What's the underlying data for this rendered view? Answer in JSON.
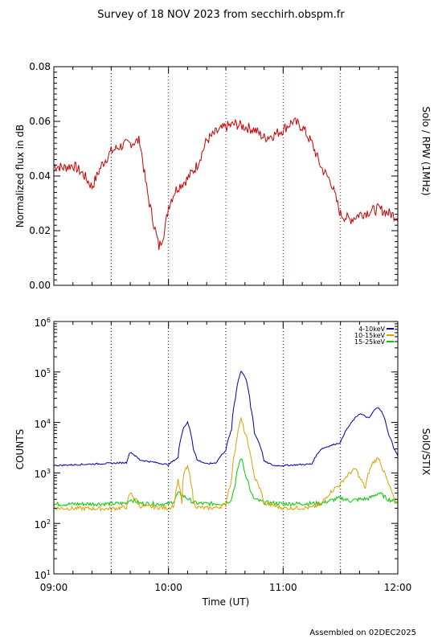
{
  "title": "Survey of 18 NOV 2023 from secchirh.obspm.fr",
  "footer": "Assembled on 02DEC2025",
  "chart_data": [
    {
      "type": "line",
      "instrument_label": "Solo / RPW (1MHz)",
      "ylabel": "Normalized flux in dB",
      "xlim": [
        "09:00",
        "12:00"
      ],
      "ylim": [
        0.0,
        0.08
      ],
      "y_ticks": [
        "0.00",
        "0.02",
        "0.04",
        "0.06",
        "0.08"
      ],
      "vertical_lines": [
        "09:30",
        "10:00",
        "10:30",
        "11:00",
        "11:30"
      ],
      "vertical_line_colors": [
        "#000000",
        "#aa0000",
        "#aa0000",
        "#aa0000",
        "#aa0000"
      ],
      "series": [
        {
          "color": "#cc0000",
          "x_minutes": [
            0,
            5,
            10,
            15,
            20,
            25,
            30,
            35,
            40,
            45,
            48,
            50,
            55,
            58,
            60,
            63,
            65,
            70,
            75,
            80,
            85,
            90,
            95,
            100,
            105,
            110,
            115,
            120,
            125,
            130,
            135,
            140,
            145,
            150,
            155,
            160,
            165,
            170,
            180
          ],
          "y": [
            0.044,
            0.043,
            0.044,
            0.041,
            0.036,
            0.044,
            0.049,
            0.051,
            0.052,
            0.053,
            0.038,
            0.03,
            0.014,
            0.02,
            0.029,
            0.034,
            0.036,
            0.039,
            0.044,
            0.053,
            0.056,
            0.058,
            0.059,
            0.058,
            0.057,
            0.054,
            0.055,
            0.057,
            0.06,
            0.058,
            0.052,
            0.043,
            0.038,
            0.026,
            0.024,
            0.026,
            0.027,
            0.028,
            0.025
          ]
        }
      ]
    },
    {
      "type": "line",
      "instrument_label": "SolO/STIX",
      "ylabel": "COUNTS",
      "xlabel": "Time (UT)",
      "x_ticks": [
        "09:00",
        "10:00",
        "11:00",
        "12:00"
      ],
      "xlim": [
        "09:00",
        "12:00"
      ],
      "y_scale": "log",
      "ylim": [
        10,
        1000000
      ],
      "y_tick_exponents": [
        "1",
        "2",
        "3",
        "4",
        "5",
        "6"
      ],
      "vertical_lines": [
        "09:30",
        "10:00",
        "10:30",
        "11:00",
        "11:30"
      ],
      "legend_position": "top-right",
      "series": [
        {
          "name": "4-10keV",
          "color": "#0000aa",
          "x_minutes": [
            0,
            20,
            38,
            40,
            45,
            60,
            65,
            68,
            70,
            73,
            75,
            80,
            85,
            90,
            93,
            95,
            98,
            100,
            103,
            105,
            110,
            115,
            120,
            135,
            140,
            150,
            155,
            160,
            165,
            168,
            170,
            172,
            175,
            178,
            180
          ],
          "y": [
            1400,
            1500,
            1600,
            2600,
            1800,
            1450,
            2000,
            8000,
            10000,
            3000,
            1800,
            1500,
            1600,
            2800,
            7000,
            30000,
            105000,
            80000,
            20000,
            6000,
            1700,
            1400,
            1400,
            1500,
            3000,
            4000,
            9000,
            15000,
            12000,
            18000,
            20000,
            15000,
            6000,
            3000,
            2200
          ]
        },
        {
          "name": "10-15keV",
          "color": "#e0a000",
          "x_minutes": [
            0,
            30,
            38,
            40,
            45,
            60,
            63,
            65,
            67,
            68,
            70,
            73,
            75,
            80,
            85,
            90,
            93,
            95,
            98,
            100,
            103,
            105,
            110,
            120,
            135,
            140,
            150,
            155,
            158,
            160,
            163,
            167,
            170,
            172,
            175,
            178,
            180
          ],
          "y": [
            200,
            195,
            210,
            400,
            220,
            200,
            230,
            700,
            240,
            1000,
            1300,
            260,
            210,
            200,
            205,
            230,
            700,
            3000,
            11500,
            6000,
            2000,
            800,
            250,
            200,
            205,
            240,
            600,
            1000,
            1200,
            800,
            500,
            1600,
            2000,
            1200,
            600,
            300,
            250
          ]
        },
        {
          "name": "15-25keV",
          "color": "#00cc00",
          "x_minutes": [
            0,
            30,
            38,
            40,
            45,
            60,
            63,
            65,
            70,
            73,
            75,
            80,
            90,
            93,
            95,
            98,
            100,
            103,
            105,
            110,
            120,
            140,
            150,
            155,
            160,
            165,
            170,
            175,
            180
          ],
          "y": [
            240,
            245,
            250,
            300,
            250,
            240,
            280,
            400,
            310,
            260,
            250,
            245,
            250,
            300,
            600,
            2000,
            1000,
            400,
            300,
            260,
            245,
            250,
            320,
            280,
            300,
            310,
            400,
            300,
            260
          ]
        }
      ]
    }
  ]
}
